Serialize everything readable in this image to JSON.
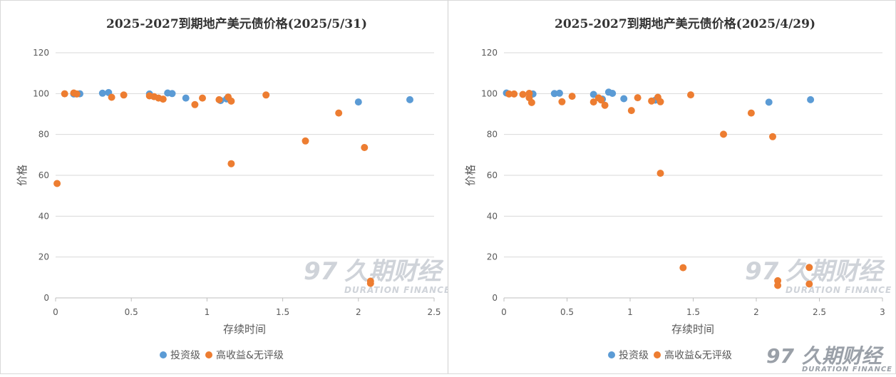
{
  "colors": {
    "investment_grade": "#5B9BD5",
    "high_yield": "#ED7D31",
    "gridline": "#d9d9d9"
  },
  "watermark": {
    "cn": "久期财经",
    "en": "DURATION FINANCE",
    "logo": "97"
  },
  "chart_data": [
    {
      "type": "scatter",
      "title": "2025-2027到期地产美元债价格(2025/5/31)",
      "xlabel": "存续时间",
      "ylabel": "价格",
      "xlim": [
        0,
        2.5
      ],
      "ylim": [
        0,
        120
      ],
      "xticks": [
        0,
        0.5,
        1,
        1.5,
        2,
        2.5
      ],
      "xtick_labels": [
        "0",
        "0.5",
        "1",
        "1.5",
        "2",
        "2.5"
      ],
      "yticks": [
        0,
        20,
        40,
        60,
        80,
        100,
        120
      ],
      "ytick_labels": [
        "0",
        "20",
        "40",
        "60",
        "80",
        "100",
        "120"
      ],
      "legend_position": "bottom",
      "series": [
        {
          "name": "投资级",
          "points": [
            [
              0.12,
              99.8
            ],
            [
              0.16,
              99.9
            ],
            [
              0.31,
              100.2
            ],
            [
              0.35,
              100.5
            ],
            [
              0.62,
              99.8
            ],
            [
              0.74,
              100.3
            ],
            [
              0.77,
              100.0
            ],
            [
              0.86,
              97.8
            ],
            [
              1.09,
              96.6
            ],
            [
              1.13,
              97.4
            ],
            [
              2.0,
              95.9
            ],
            [
              2.34,
              97.0
            ]
          ]
        },
        {
          "name": "高收益&无评级",
          "points": [
            [
              0.01,
              56.0
            ],
            [
              0.06,
              99.9
            ],
            [
              0.12,
              100.3
            ],
            [
              0.14,
              99.8
            ],
            [
              0.37,
              98.2
            ],
            [
              0.45,
              99.3
            ],
            [
              0.62,
              98.9
            ],
            [
              0.65,
              98.5
            ],
            [
              0.68,
              97.8
            ],
            [
              0.71,
              97.3
            ],
            [
              0.92,
              94.6
            ],
            [
              0.97,
              97.8
            ],
            [
              1.08,
              97.0
            ],
            [
              1.14,
              98.3
            ],
            [
              1.16,
              96.3
            ],
            [
              1.16,
              65.7
            ],
            [
              1.39,
              99.3
            ],
            [
              1.65,
              76.8
            ],
            [
              1.87,
              90.5
            ],
            [
              2.04,
              73.6
            ],
            [
              2.08,
              8.2
            ],
            [
              2.08,
              7.1
            ]
          ]
        }
      ]
    },
    {
      "type": "scatter",
      "title": "2025-2027到期地产美元债价格(2025/4/29)",
      "xlabel": "存续时间",
      "ylabel": "价格",
      "xlim": [
        0,
        3
      ],
      "ylim": [
        0,
        120
      ],
      "xticks": [
        0,
        0.5,
        1,
        1.5,
        2,
        2.5,
        3
      ],
      "xtick_labels": [
        "0",
        "0.5",
        "1",
        "1.5",
        "2",
        "2.5",
        "3"
      ],
      "yticks": [
        0,
        20,
        40,
        60,
        80,
        100,
        120
      ],
      "ytick_labels": [
        "0",
        "20",
        "40",
        "60",
        "80",
        "100",
        "120"
      ],
      "legend_position": "bottom",
      "series": [
        {
          "name": "投资级",
          "points": [
            [
              0.02,
              100.3
            ],
            [
              0.23,
              99.8
            ],
            [
              0.4,
              100.0
            ],
            [
              0.44,
              100.2
            ],
            [
              0.71,
              99.6
            ],
            [
              0.78,
              97.3
            ],
            [
              0.83,
              100.7
            ],
            [
              0.86,
              100.1
            ],
            [
              0.95,
              97.5
            ],
            [
              1.2,
              96.8
            ],
            [
              2.1,
              95.8
            ],
            [
              2.43,
              97.0
            ]
          ]
        },
        {
          "name": "高收益&无评级",
          "points": [
            [
              0.04,
              99.8
            ],
            [
              0.08,
              99.8
            ],
            [
              0.15,
              99.6
            ],
            [
              0.2,
              100.1
            ],
            [
              0.2,
              98.0
            ],
            [
              0.22,
              95.6
            ],
            [
              0.46,
              96.0
            ],
            [
              0.54,
              98.7
            ],
            [
              0.71,
              95.9
            ],
            [
              0.75,
              97.9
            ],
            [
              0.77,
              96.9
            ],
            [
              0.8,
              94.3
            ],
            [
              1.01,
              91.7
            ],
            [
              1.06,
              98.0
            ],
            [
              1.17,
              96.4
            ],
            [
              1.22,
              98.2
            ],
            [
              1.24,
              96.0
            ],
            [
              1.24,
              61.0
            ],
            [
              1.42,
              14.8
            ],
            [
              1.48,
              99.4
            ],
            [
              1.74,
              80.1
            ],
            [
              1.96,
              90.5
            ],
            [
              2.13,
              78.9
            ],
            [
              2.17,
              8.4
            ],
            [
              2.17,
              6.1
            ],
            [
              2.42,
              14.9
            ],
            [
              2.42,
              6.8
            ]
          ]
        }
      ]
    }
  ]
}
